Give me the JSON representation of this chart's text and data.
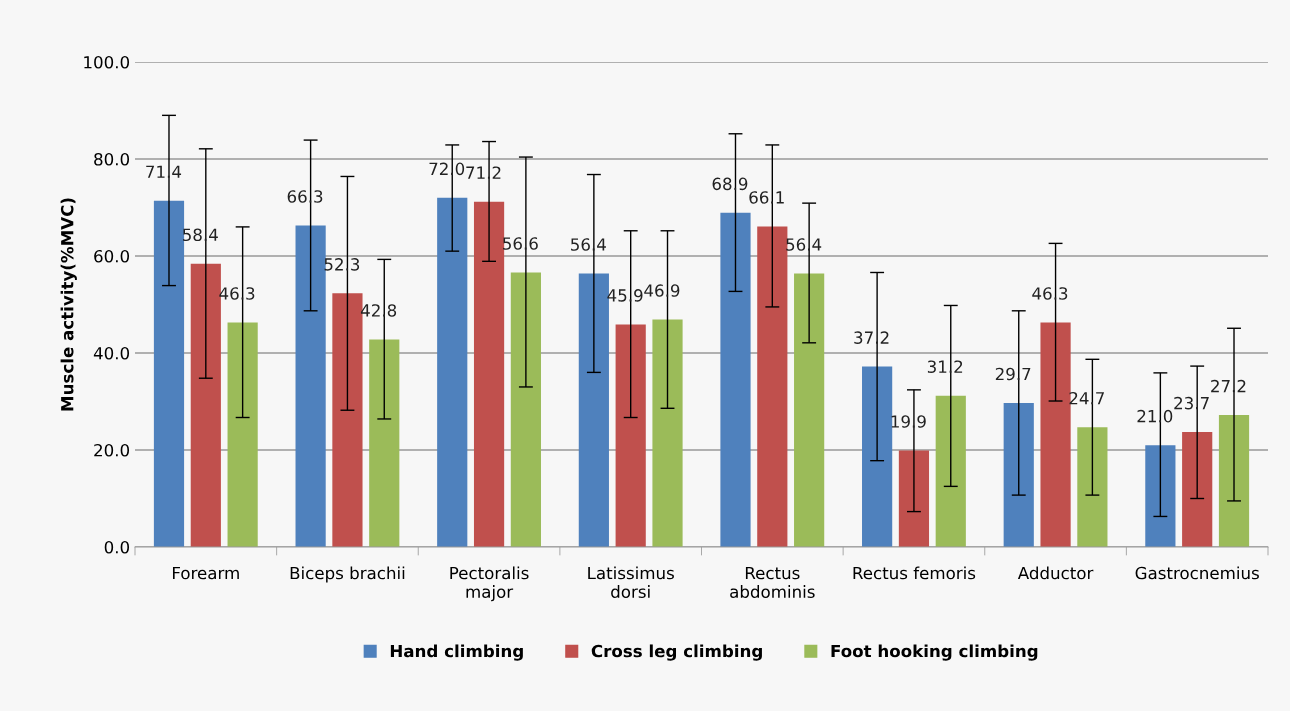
{
  "chart_data": {
    "type": "bar",
    "ylabel": "Muscle activity(%MVC)",
    "categories": [
      "Forearm",
      "Biceps brachii",
      "Pectoralis\nmajor",
      "Latissimus\ndorsi",
      "Rectus\nabdominis",
      "Rectus femoris",
      "Adductor",
      "Gastrocnemius"
    ],
    "series": [
      {
        "name": "Hand climbing",
        "color": "#4f81bd",
        "values": [
          71.4,
          66.3,
          72.0,
          56.4,
          68.9,
          37.2,
          29.7,
          21.0
        ],
        "value_labels": [
          "71.4",
          "66.3",
          "72.0",
          "56.4",
          "68.9",
          "37.2",
          "29.7",
          "21.0"
        ],
        "errors": [
          [
            53.9,
            89.0
          ],
          [
            48.7,
            83.9
          ],
          [
            61.0,
            82.9
          ],
          [
            36.0,
            76.8
          ],
          [
            52.7,
            85.2
          ],
          [
            17.8,
            56.6
          ],
          [
            10.7,
            48.7
          ],
          [
            6.3,
            35.9
          ]
        ]
      },
      {
        "name": "Cross leg climbing",
        "color": "#c0504d",
        "values": [
          58.4,
          52.3,
          71.2,
          45.9,
          66.1,
          19.9,
          46.3,
          23.7
        ],
        "value_labels": [
          "58.4",
          "52.3",
          "71.2",
          "45.9",
          "66.1",
          "19.9",
          "46.3",
          "23.7"
        ],
        "errors": [
          [
            34.8,
            82.1
          ],
          [
            28.2,
            76.4
          ],
          [
            58.9,
            83.6
          ],
          [
            26.7,
            65.2
          ],
          [
            49.5,
            82.9
          ],
          [
            7.3,
            32.4
          ],
          [
            30.1,
            62.6
          ],
          [
            10.0,
            37.3
          ]
        ]
      },
      {
        "name": "Foot hooking climbing",
        "color": "#9bbb59",
        "values": [
          46.3,
          42.8,
          56.6,
          46.9,
          56.4,
          31.2,
          24.7,
          27.2
        ],
        "value_labels": [
          "46.3",
          "42.8",
          "56.6",
          "46.9",
          "56.4",
          "31.2",
          "24.7",
          "27.2"
        ],
        "errors": [
          [
            26.7,
            66.0
          ],
          [
            26.4,
            59.3
          ],
          [
            33.0,
            80.4
          ],
          [
            28.6,
            65.2
          ],
          [
            42.1,
            70.9
          ],
          [
            12.5,
            49.8
          ],
          [
            10.7,
            38.7
          ],
          [
            9.5,
            45.1
          ]
        ]
      }
    ],
    "ylim": [
      0,
      100
    ],
    "yticks": [
      {
        "value": 0,
        "label": "0.0"
      },
      {
        "value": 20,
        "label": "20.0"
      },
      {
        "value": 40,
        "label": "40.0"
      },
      {
        "value": 60,
        "label": "60.0"
      },
      {
        "value": 80,
        "label": "80.0"
      },
      {
        "value": 100,
        "label": "100.0"
      }
    ],
    "grid": "y",
    "legend": "bottom"
  }
}
